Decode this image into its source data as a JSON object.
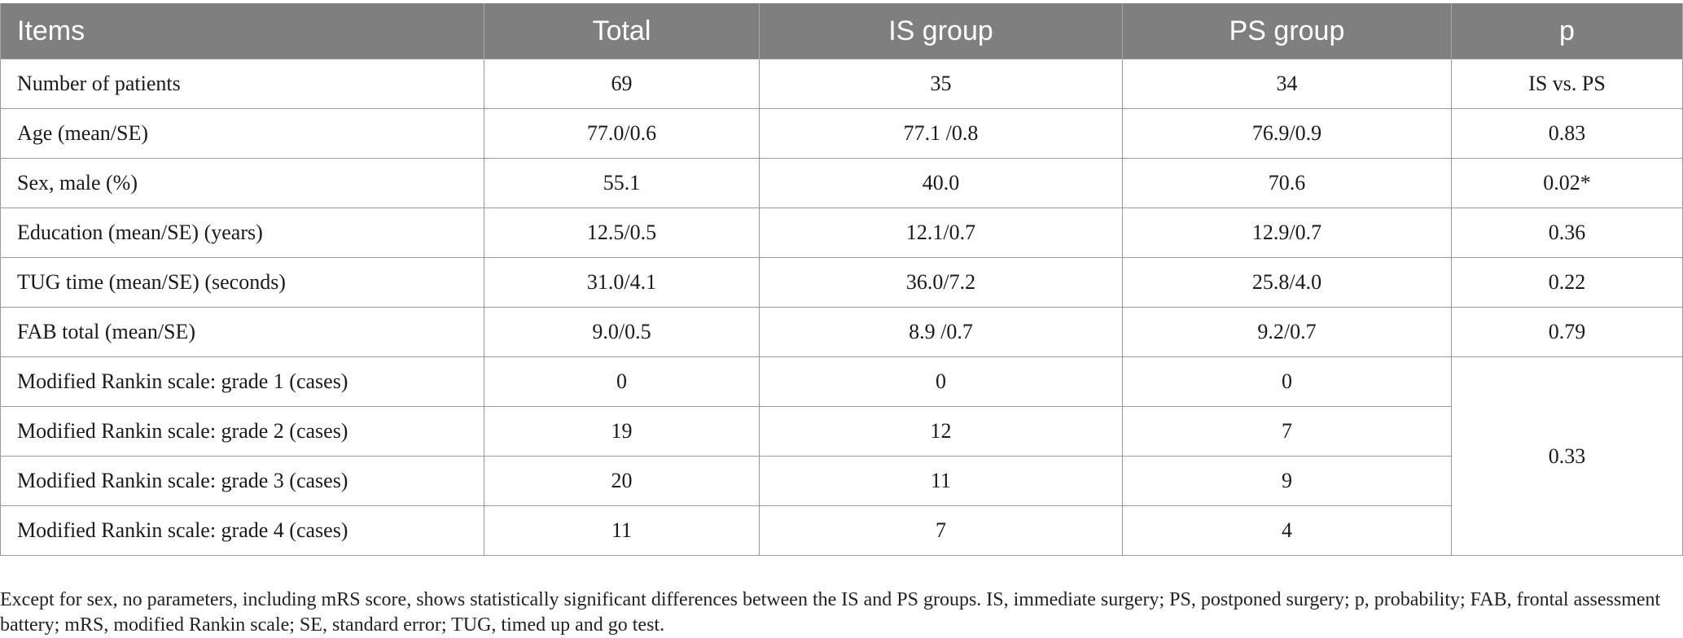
{
  "table": {
    "headers": [
      "Items",
      "Total",
      "IS group",
      "PS group",
      "p"
    ],
    "rows": [
      {
        "label": "Number of patients",
        "total": "69",
        "is": "35",
        "ps": "34",
        "p": "IS vs. PS"
      },
      {
        "label": "Age (mean/SE)",
        "total": "77.0/0.6",
        "is": "77.1 /0.8",
        "ps": "76.9/0.9",
        "p": "0.83"
      },
      {
        "label": "Sex, male (%)",
        "total": "55.1",
        "is": "40.0",
        "ps": "70.6",
        "p": "0.02*"
      },
      {
        "label": "Education (mean/SE) (years)",
        "total": "12.5/0.5",
        "is": "12.1/0.7",
        "ps": "12.9/0.7",
        "p": "0.36"
      },
      {
        "label": "TUG time (mean/SE) (seconds)",
        "total": "31.0/4.1",
        "is": "36.0/7.2",
        "ps": "25.8/4.0",
        "p": "0.22"
      },
      {
        "label": "FAB total (mean/SE)",
        "total": "9.0/0.5",
        "is": "8.9 /0.7",
        "ps": "9.2/0.7",
        "p": "0.79"
      },
      {
        "label": "Modified Rankin scale: grade 1 (cases)",
        "total": "0",
        "is": "0",
        "ps": "0"
      },
      {
        "label": "Modified Rankin scale: grade 2 (cases)",
        "total": "19",
        "is": "12",
        "ps": "7"
      },
      {
        "label": "Modified Rankin scale: grade 3 (cases)",
        "total": "20",
        "is": "11",
        "ps": "9"
      },
      {
        "label": "Modified Rankin scale: grade 4 (cases)",
        "total": "11",
        "is": "7",
        "ps": "4"
      }
    ],
    "rankin_p": "0.33"
  },
  "footnote": "Except for sex, no parameters, including mRS score, shows statistically significant differences between the IS and PS groups. IS, immediate surgery; PS, postponed surgery; p, probability; FAB, frontal assessment battery; mRS, modified Rankin scale; SE, standard error; TUG, timed up and go test.",
  "colors": {
    "header_bg": "#7f7f7f",
    "header_text": "#ffffff",
    "grid": "#9a9a9a"
  }
}
